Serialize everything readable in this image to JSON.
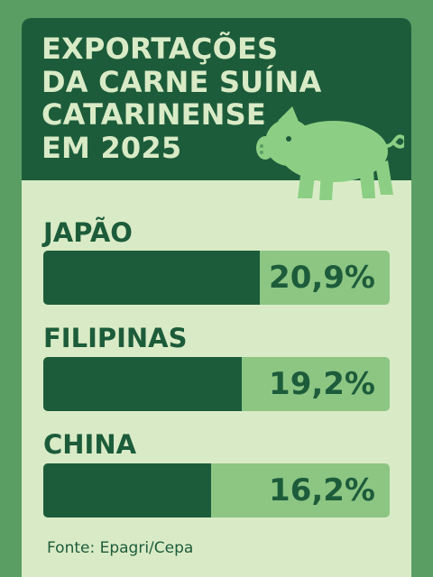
{
  "chart_data": {
    "type": "bar",
    "title": "EXPORTAÇÕES DA CARNE SUÍNA CATARINENSE EM 2025",
    "title_lines": [
      "EXPORTAÇÕES",
      "DA CARNE SUÍNA",
      "CATARINENSE",
      "EM 2025"
    ],
    "categories": [
      "JAPÃO",
      "FILIPINAS",
      "CHINA"
    ],
    "values": [
      20.9,
      19.2,
      16.2
    ],
    "value_labels": [
      "20,9%",
      "19,2%",
      "16,2%"
    ],
    "unit": "%",
    "source": "Fonte: Epagri/Cepa",
    "colors": {
      "background": "#5b9e64",
      "panel": "#d9ebc6",
      "dark_green": "#1d5c3b",
      "light_green": "#8dc583",
      "pig": "#8ccf84"
    },
    "icons": [
      "pig-icon"
    ]
  }
}
